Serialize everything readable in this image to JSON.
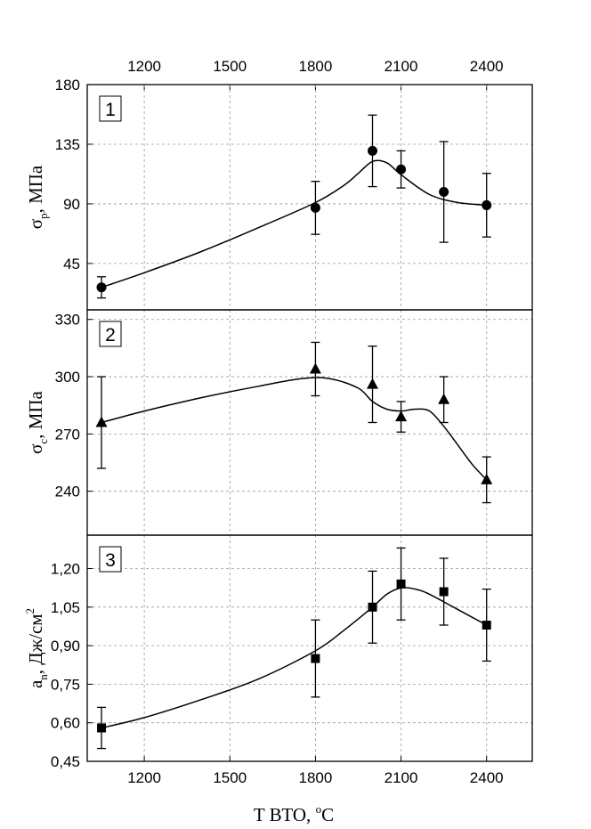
{
  "chart_data": {
    "type": "line",
    "x_top_ticks": [
      1200,
      1500,
      1800,
      2100,
      2400
    ],
    "xlabel": "T ВТО, ",
    "xlabel_unit": "C",
    "xlabel_unit_sup": "o",
    "xlim": [
      1000,
      2560
    ],
    "x_bottom_ticks": [
      1200,
      1500,
      1800,
      2100,
      2400
    ],
    "panels": [
      {
        "label": "1",
        "ylabel_main": "σ",
        "ylabel_sub": "p",
        "ylabel_rest": ", МПа",
        "ylim": [
          10,
          180
        ],
        "yticks": [
          45,
          90,
          135,
          180
        ],
        "ytick_labels": [
          "45",
          "90",
          "135",
          "180"
        ],
        "marker": "circle",
        "x": [
          1050,
          1800,
          2000,
          2100,
          2250,
          2400
        ],
        "y": [
          27,
          87,
          130,
          116,
          99,
          89
        ],
        "err": [
          8,
          20,
          27,
          14,
          38,
          24
        ],
        "curve_x": [
          1050,
          1200,
          1400,
          1600,
          1800,
          1900,
          1950,
          2000,
          2050,
          2100,
          2200,
          2300,
          2400
        ],
        "curve_y": [
          27,
          38,
          54,
          72,
          91,
          104,
          113,
          122,
          121,
          112,
          97,
          91,
          89
        ]
      },
      {
        "label": "2",
        "ylabel_main": "σ",
        "ylabel_sub": "c",
        "ylabel_rest": ", МПа",
        "ylim": [
          217,
          335
        ],
        "yticks": [
          240,
          270,
          300,
          330
        ],
        "ytick_labels": [
          "240",
          "270",
          "300",
          "330"
        ],
        "marker": "triangle",
        "x": [
          1050,
          1800,
          2000,
          2100,
          2250,
          2400
        ],
        "y": [
          276,
          304,
          296,
          279,
          288,
          246
        ],
        "err": [
          24,
          14,
          20,
          8,
          12,
          12
        ],
        "curve_x": [
          1050,
          1200,
          1400,
          1600,
          1750,
          1850,
          1950,
          2000,
          2050,
          2100,
          2150,
          2200,
          2250,
          2300,
          2350,
          2400
        ],
        "curve_y": [
          276,
          282,
          289,
          295,
          299,
          299,
          294,
          287,
          283,
          282,
          283,
          282,
          274,
          264,
          254,
          246
        ]
      },
      {
        "label": "3",
        "ylabel_main": "a",
        "ylabel_sub": "n",
        "ylabel_rest": ", Дж/см",
        "ylabel_sup": "2",
        "ylim": [
          0.45,
          1.33
        ],
        "yticks": [
          0.45,
          0.6,
          0.75,
          0.9,
          1.05,
          1.2
        ],
        "ytick_labels": [
          "0,45",
          "0,60",
          "0,75",
          "0,90",
          "1,05",
          "1,20"
        ],
        "marker": "square",
        "x": [
          1050,
          1800,
          2000,
          2100,
          2250,
          2400
        ],
        "y": [
          0.58,
          0.85,
          1.05,
          1.14,
          1.11,
          0.98
        ],
        "err": [
          0.08,
          0.15,
          0.14,
          0.14,
          0.13,
          0.14
        ],
        "curve_x": [
          1050,
          1200,
          1400,
          1600,
          1800,
          1900,
          2000,
          2050,
          2100,
          2150,
          2200,
          2300,
          2400
        ],
        "curve_y": [
          0.58,
          0.62,
          0.69,
          0.77,
          0.88,
          0.96,
          1.05,
          1.1,
          1.125,
          1.12,
          1.1,
          1.04,
          0.98
        ]
      }
    ]
  }
}
